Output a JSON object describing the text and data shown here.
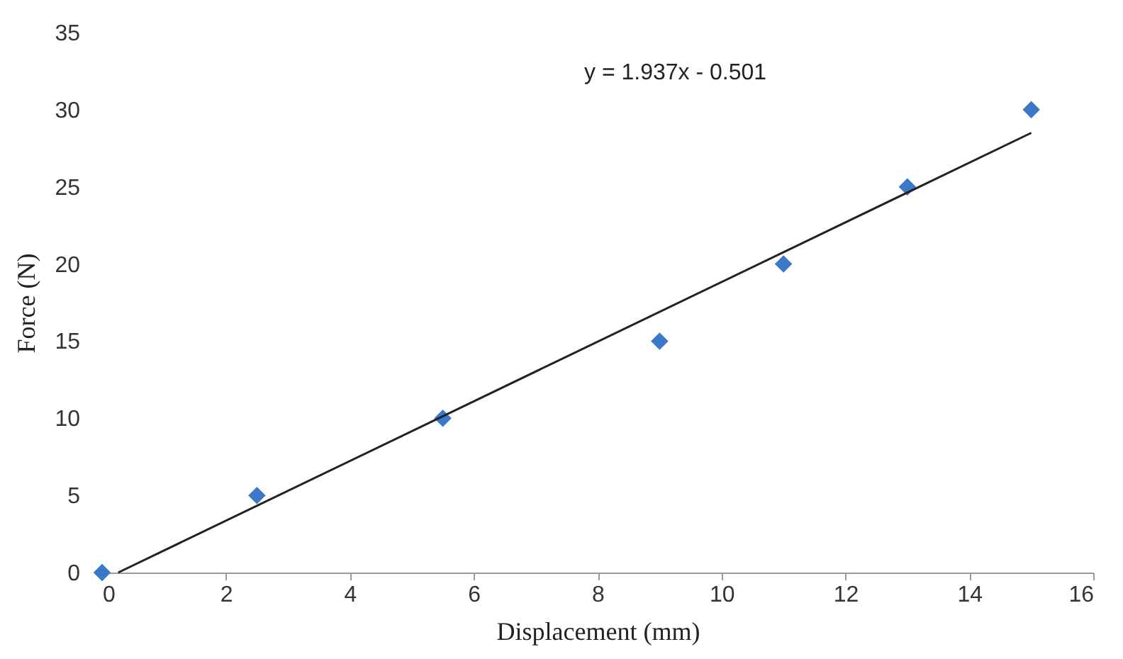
{
  "chart_data": {
    "type": "scatter",
    "xlabel": "Displacement (mm)",
    "ylabel": "Force (N)",
    "marker": "diamond",
    "grid": false,
    "xlim": [
      0,
      16
    ],
    "xticks": [
      0,
      2,
      4,
      6,
      8,
      10,
      12,
      14,
      16
    ],
    "ylim": [
      0,
      35
    ],
    "yticks": [
      0,
      5,
      10,
      15,
      20,
      25,
      30,
      35
    ],
    "annotations": [
      "y = 1.937x - 0.501"
    ],
    "series": [
      {
        "color": "#3b79c8",
        "x": [
          0,
          2.5,
          5.5,
          9,
          11,
          13,
          15
        ],
        "values": [
          0,
          5,
          10,
          15,
          20,
          25,
          30
        ]
      },
      {
        "type": "line",
        "color": "#222222",
        "marker": "none",
        "x": [
          0.26,
          15
        ],
        "values": [
          0,
          28.5
        ]
      }
    ]
  }
}
